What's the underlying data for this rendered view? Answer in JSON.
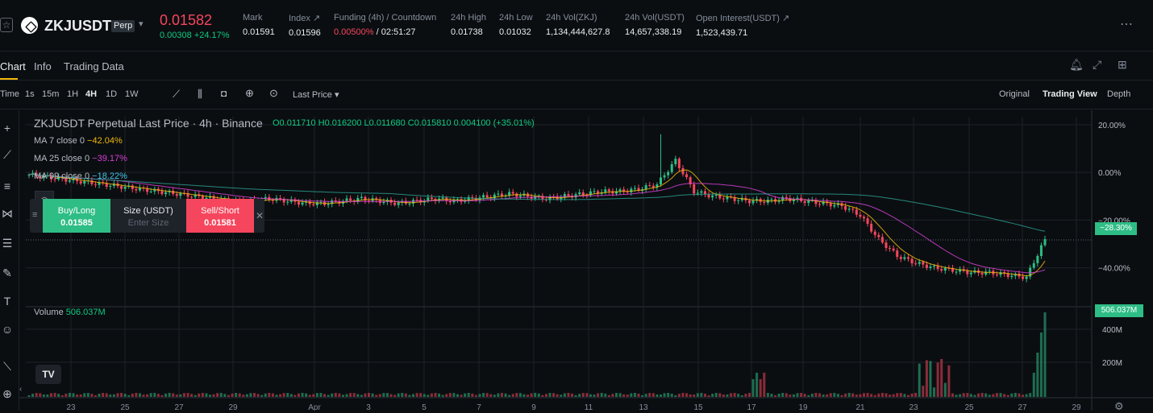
{
  "header": {
    "symbol": "ZKJUSDT",
    "contract_badge": "Perp",
    "last_price": "0.01582",
    "change": "0.00308 +24.17%",
    "stats": [
      {
        "label": "Mark",
        "value": "0.01591"
      },
      {
        "label": "Index ↗",
        "value": "0.01596"
      },
      {
        "label": "Funding (4h) / Countdown",
        "value_rate": "0.00500%",
        "value_countdown": " / 02:51:27"
      },
      {
        "label": "24h High",
        "value": "0.01738"
      },
      {
        "label": "24h Low",
        "value": "0.01032"
      },
      {
        "label": "24h Vol(ZKJ)",
        "value": "1,134,444,627.8"
      },
      {
        "label": "24h Vol(USDT)",
        "value": "14,657,338.19"
      },
      {
        "label": "Open Interest(USDT) ↗",
        "value": "1,523,439.71"
      }
    ],
    "more_icon": "ellipsis-icon"
  },
  "tabs": [
    {
      "label": "Chart"
    },
    {
      "label": "Info"
    },
    {
      "label": "Trading Data"
    }
  ],
  "toolbar": {
    "intervals": [
      "Time",
      "1s",
      "15m",
      "1H",
      "4H",
      "1D",
      "1W"
    ],
    "selected_interval": "4H",
    "price_type": "Last Price ▾",
    "views": [
      "Original",
      "Trading View",
      "Depth"
    ],
    "selected_view": "Trading View"
  },
  "chart": {
    "title": "ZKJUSDT Perpetual Last Price · 4h · Binance",
    "ohlc": "O0.011710 H0.016200 L0.011680 C0.015810 0.004100 (+35.01%)",
    "ma7": {
      "label": "MA 7 close 0",
      "value": "−42.04%",
      "color": "#f0b90b"
    },
    "ma25": {
      "label": "MA 25 close 0",
      "value": "−39.17%",
      "color": "#d63fd6"
    },
    "ma99": {
      "label": "MA 99 close 0",
      "value": "−18.22%",
      "color": "#44c4e8"
    },
    "volume_label": "Volume",
    "volume_value": "506.037M",
    "current_pct_tag": "−28.30%",
    "current_volume_tag": "506.037M",
    "buy_label": "Buy/Long",
    "buy_price": "0.01585",
    "size_label": "Size (USDT)",
    "size_placeholder": "Enter Size",
    "sell_label": "Sell/Short",
    "sell_price": "0.01581",
    "tv_logo": "TV"
  },
  "chart_data": {
    "type": "candlestick",
    "y_axis_ticks": [
      "20.00%",
      "0.00%",
      "−20.00%",
      "−40.00%"
    ],
    "volume_axis_ticks": [
      "400M",
      "200M"
    ],
    "x_axis_ticks": [
      "23",
      "25",
      "27",
      "29",
      "Apr",
      "3",
      "5",
      "7",
      "9",
      "11",
      "13",
      "15",
      "17",
      "19",
      "21",
      "23",
      "25",
      "27",
      "29"
    ],
    "ylim_percent": [
      -55,
      22
    ],
    "candles_percent_close": [
      -1,
      -2,
      -3,
      -4,
      -5,
      -6,
      -7,
      -8,
      -9,
      -10,
      -11,
      -12,
      -12,
      -11,
      -12,
      -13,
      -13,
      -12,
      -11,
      -12,
      -13,
      -12,
      -11,
      -12,
      -11,
      -10,
      -9,
      -10,
      -11,
      -10,
      -9,
      -8,
      -8,
      -7,
      -5,
      5,
      -8,
      -10,
      -11,
      -12,
      -12,
      -11,
      -12,
      -13,
      -14,
      -18,
      -28,
      -35,
      -38,
      -40,
      -41,
      -42,
      -42,
      -43,
      -44,
      -28
    ],
    "ma_values_percent": {
      "ma7_last": -42.04,
      "ma25_last": -39.17,
      "ma99_last": -18.22
    }
  },
  "colors": {
    "up": "#2ebd85",
    "down": "#f6465d",
    "accent": "#f0b90b"
  }
}
